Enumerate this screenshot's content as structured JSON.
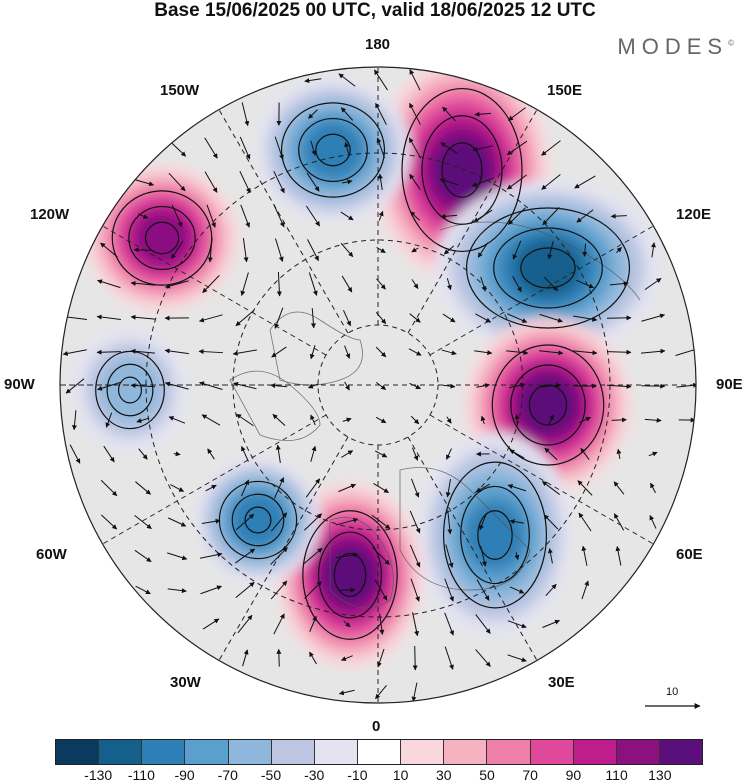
{
  "title": "Base 15/06/2025 00 UTC, valid 18/06/2025 12 UTC",
  "brand": "MODES",
  "brand_mark": "©",
  "longitude_labels": {
    "l180": "180",
    "l150w": "150W",
    "l150e": "150E",
    "l120w": "120W",
    "l120e": "120E",
    "l90w": "90W",
    "l90e": "90E",
    "l60w": "60W",
    "l60e": "60E",
    "l30w": "30W",
    "l30e": "30E",
    "l0": "0"
  },
  "vector_reference": "10",
  "colorbar": {
    "colors": [
      "#0b3a5c",
      "#155f8d",
      "#2d7fb5",
      "#5a9fcd",
      "#8fb7db",
      "#bcc6e2",
      "#e3e3f1",
      "#ffffff",
      "#f9d7dc",
      "#f5b2c1",
      "#ee7fa9",
      "#e0489c",
      "#bf1d8c",
      "#8b1181",
      "#5b0f7a"
    ],
    "tick_labels": [
      "-130",
      "-110",
      "-90",
      "-70",
      "-50",
      "-30",
      "-10",
      "10",
      "30",
      "50",
      "70",
      "90",
      "110",
      "130"
    ]
  },
  "anomaly_centers": [
    {
      "name": "150E high",
      "value": 110
    },
    {
      "name": "120E low",
      "value": -90
    },
    {
      "name": "90E high",
      "value": 110
    },
    {
      "name": "30E low",
      "value": -70
    },
    {
      "name": "0 high",
      "value": 110
    },
    {
      "name": "60W low",
      "value": -70
    },
    {
      "name": "120W high",
      "value": 90
    },
    {
      "name": "160W low",
      "value": -70
    },
    {
      "name": "90W low",
      "value": -30
    }
  ]
}
